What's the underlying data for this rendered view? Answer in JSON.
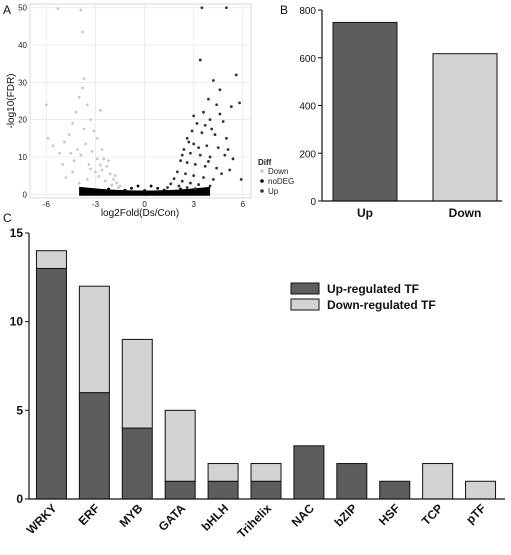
{
  "panels": {
    "a": "A",
    "b": "B",
    "c": "C"
  },
  "chart_data": [
    {
      "type": "scatter",
      "panel": "A",
      "title": "",
      "xlabel": "log2Fold(Ds/Con)",
      "ylabel": "-log10(FDR)",
      "xlim": [
        -7,
        6.5
      ],
      "ylim": [
        -1,
        51
      ],
      "xticks": [
        -6,
        -3,
        0,
        3,
        6
      ],
      "yticks": [
        0,
        10,
        20,
        30,
        40,
        50
      ],
      "grid": true,
      "legend": {
        "title": "Diff",
        "placement": "right-bottom",
        "entries": [
          "Down",
          "noDEG",
          "Up"
        ]
      },
      "colors": {
        "Down": "#c8c8c8",
        "noDEG": "#000000",
        "Up": "#333333"
      },
      "series": [
        {
          "name": "Down",
          "points": [
            [
              -5.3,
              49.8
            ],
            [
              -3.9,
              49.4
            ],
            [
              -3.8,
              43.5
            ],
            [
              -6.0,
              24.0
            ],
            [
              -5.9,
              15.0
            ],
            [
              -5.6,
              13.0
            ],
            [
              -5.2,
              11.0
            ],
            [
              -4.9,
              14.0
            ],
            [
              -4.6,
              16.0
            ],
            [
              -4.4,
              19.0
            ],
            [
              -4.2,
              22.0
            ],
            [
              -4.0,
              26.0
            ],
            [
              -3.8,
              28.5
            ],
            [
              -3.7,
              31.0
            ],
            [
              -3.5,
              24.0
            ],
            [
              -3.3,
              20.0
            ],
            [
              -3.1,
              17.0
            ],
            [
              -2.9,
              15.0
            ],
            [
              -2.7,
              22.5
            ],
            [
              -2.6,
              12.0
            ],
            [
              -2.5,
              9.5
            ],
            [
              -2.3,
              7.5
            ],
            [
              -2.1,
              5.5
            ],
            [
              -1.9,
              4.0
            ],
            [
              -1.7,
              3.0
            ],
            [
              -1.5,
              2.2
            ],
            [
              -3.4,
              8.0
            ],
            [
              -3.9,
              10.5
            ],
            [
              -4.4,
              6.0
            ],
            [
              -4.8,
              4.5
            ],
            [
              -5.0,
              8.0
            ],
            [
              -3.0,
              6.0
            ],
            [
              -2.8,
              4.8
            ],
            [
              -2.4,
              3.6
            ],
            [
              -3.6,
              13.5
            ],
            [
              -4.1,
              12.0
            ],
            [
              -2.2,
              9.0
            ],
            [
              -3.2,
              11.5
            ],
            [
              -4.3,
              9.0
            ],
            [
              -2.6,
              6.5
            ],
            [
              -1.8,
              5.0
            ],
            [
              -3.5,
              4.0
            ],
            [
              -4.0,
              3.0
            ],
            [
              -2.9,
              9.5
            ],
            [
              -3.7,
              17.5
            ],
            [
              -4.5,
              11.0
            ],
            [
              -2.0,
              2.5
            ],
            [
              -1.6,
              1.8
            ],
            [
              -3.3,
              6.8
            ],
            [
              -2.7,
              7.8
            ]
          ]
        },
        {
          "name": "noDEG",
          "points": [
            [
              -3.0,
              1.2
            ],
            [
              -2.5,
              1.0
            ],
            [
              -2.0,
              0.7
            ],
            [
              -1.5,
              0.5
            ],
            [
              -1.0,
              0.3
            ],
            [
              -0.5,
              0.1
            ],
            [
              0.0,
              0.0
            ],
            [
              0.5,
              0.1
            ],
            [
              1.0,
              0.3
            ],
            [
              1.5,
              0.5
            ],
            [
              2.0,
              0.7
            ],
            [
              2.5,
              1.0
            ],
            [
              3.0,
              1.2
            ],
            [
              3.5,
              0.9
            ],
            [
              -3.5,
              0.9
            ],
            [
              -2.8,
              0.4
            ],
            [
              -1.8,
              0.2
            ],
            [
              1.8,
              0.2
            ],
            [
              2.8,
              0.4
            ],
            [
              -0.8,
              1.6
            ],
            [
              0.8,
              1.6
            ],
            [
              -0.4,
              2.2
            ],
            [
              0.4,
              2.2
            ],
            [
              -1.2,
              1.1
            ],
            [
              1.2,
              1.1
            ],
            [
              0.0,
              1.0
            ],
            [
              -2.2,
              1.4
            ],
            [
              2.2,
              1.4
            ],
            [
              3.8,
              0.3
            ],
            [
              -3.8,
              0.3
            ]
          ]
        },
        {
          "name": "Up",
          "points": [
            [
              3.5,
              50.0
            ],
            [
              5.0,
              50.0
            ],
            [
              3.4,
              36.0
            ],
            [
              5.6,
              32.0
            ],
            [
              4.2,
              30.5
            ],
            [
              4.6,
              28.0
            ],
            [
              3.9,
              25.5
            ],
            [
              4.4,
              24.0
            ],
            [
              5.3,
              23.5
            ],
            [
              5.8,
              24.5
            ],
            [
              3.6,
              22.0
            ],
            [
              4.0,
              20.0
            ],
            [
              4.8,
              19.5
            ],
            [
              3.2,
              19.0
            ],
            [
              2.9,
              17.0
            ],
            [
              3.5,
              16.5
            ],
            [
              4.3,
              16.0
            ],
            [
              5.0,
              15.0
            ],
            [
              2.6,
              15.0
            ],
            [
              3.0,
              13.5
            ],
            [
              3.8,
              13.0
            ],
            [
              4.5,
              12.5
            ],
            [
              2.4,
              12.0
            ],
            [
              2.8,
              11.0
            ],
            [
              3.4,
              10.5
            ],
            [
              4.0,
              10.0
            ],
            [
              4.9,
              10.5
            ],
            [
              5.4,
              9.5
            ],
            [
              2.2,
              9.0
            ],
            [
              2.6,
              8.5
            ],
            [
              3.1,
              8.0
            ],
            [
              3.7,
              7.5
            ],
            [
              4.4,
              7.0
            ],
            [
              5.2,
              6.5
            ],
            [
              2.0,
              6.0
            ],
            [
              2.5,
              5.5
            ],
            [
              3.0,
              5.0
            ],
            [
              3.6,
              4.5
            ],
            [
              4.2,
              4.0
            ],
            [
              1.8,
              4.2
            ],
            [
              2.3,
              3.5
            ],
            [
              2.8,
              3.0
            ],
            [
              3.3,
              2.6
            ],
            [
              4.0,
              2.2
            ],
            [
              1.6,
              2.8
            ],
            [
              2.1,
              2.2
            ],
            [
              2.6,
              1.8
            ],
            [
              3.1,
              1.5
            ],
            [
              1.4,
              1.8
            ],
            [
              5.9,
              4.0
            ],
            [
              4.7,
              5.5
            ],
            [
              3.9,
              8.8
            ],
            [
              3.3,
              12.5
            ],
            [
              2.7,
              14.0
            ],
            [
              4.1,
              17.5
            ],
            [
              3.0,
              21.0
            ],
            [
              4.6,
              21.5
            ],
            [
              3.7,
              18.5
            ],
            [
              5.1,
              12.0
            ],
            [
              2.3,
              10.5
            ]
          ]
        }
      ]
    },
    {
      "type": "bar",
      "panel": "B",
      "title": "",
      "xlabel": "",
      "ylabel": "",
      "categories": [
        "Up",
        "Down"
      ],
      "values": [
        748,
        617
      ],
      "ylim": [
        0,
        800
      ],
      "yticks": [
        0,
        200,
        400,
        600,
        800
      ],
      "grid": false,
      "colors": [
        "#5d5d5d",
        "#d3d3d3"
      ]
    },
    {
      "type": "bar",
      "panel": "C",
      "stacked": true,
      "title": "",
      "xlabel": "",
      "ylabel": "",
      "categories": [
        "WRKY",
        "ERF",
        "MYB",
        "GATA",
        "bHLH",
        "Trihelix",
        "NAC",
        "bZIP",
        "HSF",
        "TCP",
        "pTF"
      ],
      "series": [
        {
          "name": "Up-regulated TF",
          "color": "#5d5d5d",
          "values": [
            13,
            6,
            4,
            1,
            1,
            1,
            3,
            2,
            1,
            0,
            0
          ]
        },
        {
          "name": "Down-regulated TF",
          "color": "#d3d3d3",
          "values": [
            1,
            6,
            5,
            4,
            1,
            1,
            0,
            0,
            0,
            2,
            1
          ]
        }
      ],
      "ylim": [
        0,
        15
      ],
      "yticks": [
        0,
        5,
        10,
        15
      ],
      "legend": {
        "placement": "top-right"
      },
      "grid": false
    }
  ]
}
